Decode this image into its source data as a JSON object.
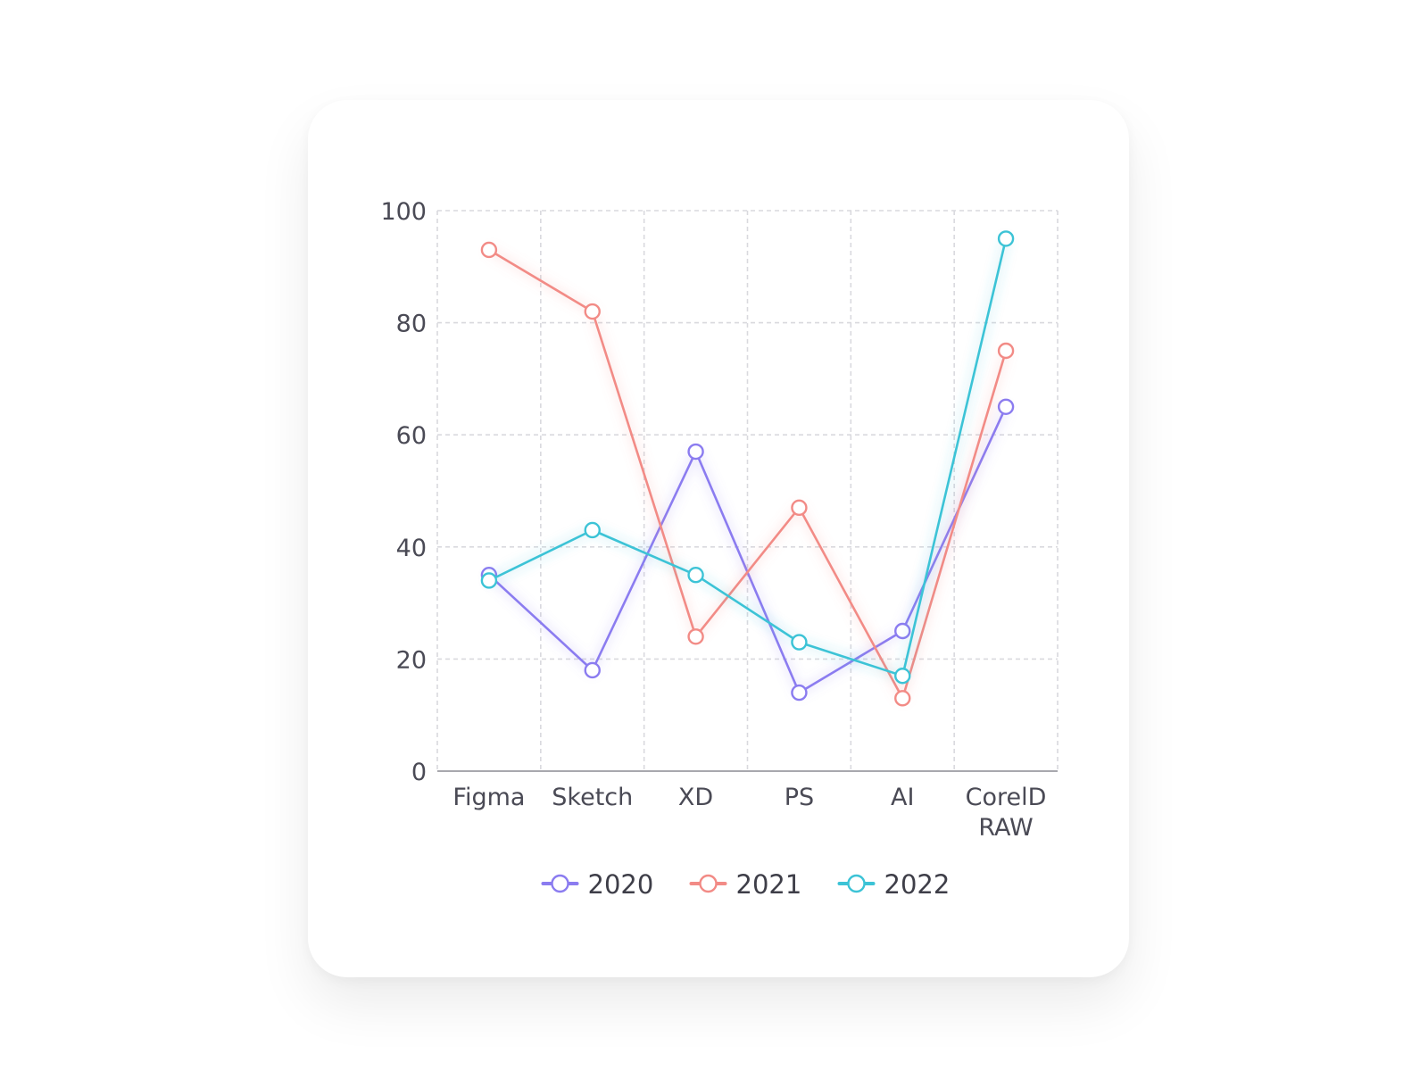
{
  "chart_data": {
    "type": "line",
    "title": "",
    "xlabel": "",
    "ylabel": "",
    "categories": [
      "Figma",
      "Sketch",
      "XD",
      "PS",
      "AI",
      "CorelD RAW"
    ],
    "category_lines": [
      [
        "Figma"
      ],
      [
        "Sketch"
      ],
      [
        "XD"
      ],
      [
        "PS"
      ],
      [
        "AI"
      ],
      [
        "CorelD",
        "RAW"
      ]
    ],
    "ylim": [
      0,
      100
    ],
    "yticks": [
      0,
      20,
      40,
      60,
      80,
      100
    ],
    "grid": true,
    "legend_position": "bottom-center",
    "series": [
      {
        "name": "2020",
        "color": "#8b7cf0",
        "values": [
          35,
          18,
          57,
          14,
          25,
          65
        ]
      },
      {
        "name": "2021",
        "color": "#f28b86",
        "values": [
          93,
          82,
          24,
          47,
          13,
          75
        ]
      },
      {
        "name": "2022",
        "color": "#3cc3d6",
        "values": [
          34,
          43,
          35,
          23,
          17,
          95
        ]
      }
    ]
  }
}
